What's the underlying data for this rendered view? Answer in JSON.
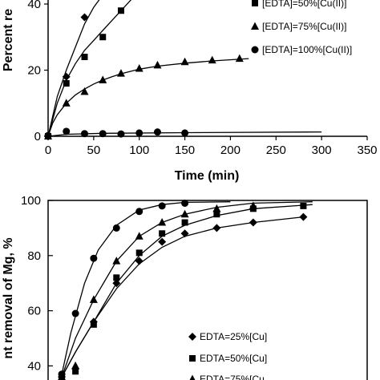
{
  "chart_data": [
    {
      "type": "scatter",
      "xlabel": "Time (min)",
      "ylabel": "Percent re",
      "xlim": [
        0,
        350
      ],
      "ylim": [
        0,
        45
      ],
      "x_ticks": [
        "0",
        "50",
        "100",
        "150",
        "200",
        "250",
        "300",
        "350"
      ],
      "y_ticks": [
        "0",
        "20",
        "40"
      ],
      "grid": false,
      "legend_position": "right",
      "series": [
        {
          "name": "",
          "marker": "diamond",
          "x": [
            0,
            20,
            40
          ],
          "y": [
            0,
            18,
            36
          ],
          "fit": [
            [
              0,
              0
            ],
            [
              10,
              12
            ],
            [
              20,
              20
            ],
            [
              30,
              27
            ],
            [
              40,
              34
            ],
            [
              50,
              39
            ],
            [
              58,
              42
            ]
          ]
        },
        {
          "name": "[EDTA]=50%[Cu(II)]",
          "marker": "square",
          "x": [
            0,
            20,
            40,
            60,
            80
          ],
          "y": [
            0,
            16,
            24,
            30,
            38
          ],
          "fit": [
            [
              0,
              0
            ],
            [
              10,
              10
            ],
            [
              20,
              17
            ],
            [
              30,
              22
            ],
            [
              40,
              26
            ],
            [
              50,
              29
            ],
            [
              60,
              32
            ],
            [
              70,
              35
            ],
            [
              80,
              38
            ],
            [
              90,
              41
            ],
            [
              100,
              44
            ]
          ]
        },
        {
          "name": "[EDTA]=75%[Cu(II)]",
          "marker": "triangle",
          "x": [
            0,
            20,
            40,
            60,
            80,
            100,
            120,
            150,
            180,
            210
          ],
          "y": [
            0,
            10,
            13.5,
            17,
            19,
            20.5,
            21.5,
            22.5,
            23,
            23.5
          ],
          "fit": [
            [
              0,
              0
            ],
            [
              5,
              4
            ],
            [
              10,
              6.5
            ],
            [
              20,
              10
            ],
            [
              30,
              12.5
            ],
            [
              40,
              14.3
            ],
            [
              50,
              15.8
            ],
            [
              60,
              17
            ],
            [
              70,
              18
            ],
            [
              80,
              18.9
            ],
            [
              100,
              20.3
            ],
            [
              120,
              21.2
            ],
            [
              150,
              22.1
            ],
            [
              180,
              22.8
            ],
            [
              220,
              23.5
            ]
          ]
        },
        {
          "name": "[EDTA]=100%[Cu(II)]",
          "marker": "circle",
          "x": [
            0,
            20,
            40,
            60,
            80,
            100,
            120,
            150
          ],
          "y": [
            0.2,
            1.5,
            0.8,
            0.8,
            0.7,
            1.0,
            1.3,
            1.0
          ],
          "fit": [
            [
              0,
              0
            ],
            [
              20,
              0.6
            ],
            [
              60,
              0.9
            ],
            [
              150,
              1.1
            ],
            [
              300,
              1.3
            ]
          ]
        }
      ]
    },
    {
      "type": "scatter",
      "xlabel": "",
      "ylabel": "nt removal of Mg, %",
      "xlim": [
        0,
        350
      ],
      "ylim": [
        35,
        100
      ],
      "y_ticks": [
        "40",
        "60",
        "80",
        "100"
      ],
      "grid": false,
      "legend_position": "bottom-right",
      "series": [
        {
          "name": "EDTA=25%[Cu]",
          "marker": "diamond",
          "x": [
            15,
            30,
            50,
            75,
            100,
            125,
            150,
            185,
            225,
            280
          ],
          "y": [
            36,
            39,
            56,
            70,
            78,
            85,
            88,
            90,
            92,
            94
          ],
          "fit": [
            [
              15,
              36
            ],
            [
              30,
              45
            ],
            [
              50,
              56
            ],
            [
              75,
              68
            ],
            [
              100,
              77
            ],
            [
              125,
              83
            ],
            [
              150,
              87
            ],
            [
              185,
              90
            ],
            [
              225,
              92
            ],
            [
              280,
              94
            ]
          ]
        },
        {
          "name": "EDTA=50%[Cu]",
          "marker": "square",
          "x": [
            15,
            30,
            50,
            75,
            100,
            125,
            150,
            185,
            225,
            280
          ],
          "y": [
            36,
            38,
            55,
            72,
            81,
            88,
            92,
            95,
            97,
            98
          ],
          "fit": [
            [
              15,
              36
            ],
            [
              30,
              45
            ],
            [
              50,
              56
            ],
            [
              75,
              70
            ],
            [
              100,
              80
            ],
            [
              125,
              87
            ],
            [
              150,
              91
            ],
            [
              185,
              94.5
            ],
            [
              225,
              97
            ],
            [
              290,
              98.5
            ]
          ]
        },
        {
          "name": "EDTA=75%[Cu",
          "marker": "triangle",
          "x": [
            15,
            30,
            50,
            75,
            100,
            125,
            150,
            185,
            225
          ],
          "y": [
            36,
            40,
            64,
            78,
            87,
            92,
            95,
            97,
            98
          ],
          "fit": [
            [
              15,
              36
            ],
            [
              30,
              50
            ],
            [
              50,
              64
            ],
            [
              75,
              78
            ],
            [
              100,
              87
            ],
            [
              125,
              92
            ],
            [
              150,
              95
            ],
            [
              185,
              97.5
            ],
            [
              225,
              99
            ],
            [
              290,
              99.5
            ]
          ]
        },
        {
          "name": "",
          "marker": "circle",
          "x": [
            15,
            30,
            50,
            75,
            100,
            125,
            150
          ],
          "y": [
            37,
            59,
            79,
            90,
            96,
            98,
            99
          ],
          "fit": [
            [
              15,
              37
            ],
            [
              25,
              52
            ],
            [
              40,
              70
            ],
            [
              55,
              82
            ],
            [
              75,
              91
            ],
            [
              100,
              96.5
            ],
            [
              125,
              98.5
            ],
            [
              150,
              99.3
            ],
            [
              200,
              99.5
            ]
          ]
        }
      ]
    }
  ]
}
